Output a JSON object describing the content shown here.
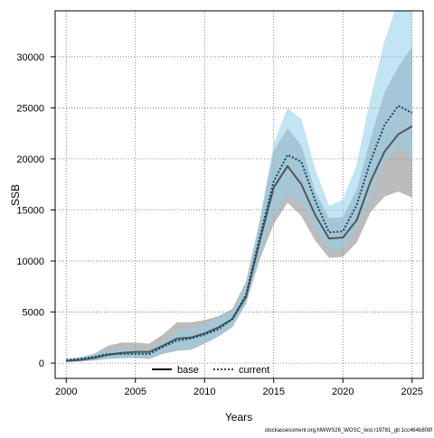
{
  "chart_data": {
    "type": "line",
    "xlabel": "Years",
    "ylabel": "SSB",
    "xlim": [
      1999.2,
      2025.8
    ],
    "ylim": [
      -1500,
      34500
    ],
    "x_ticks": [
      2000,
      2005,
      2010,
      2015,
      2020,
      2025
    ],
    "y_ticks": [
      0,
      5000,
      10000,
      15000,
      20000,
      25000,
      30000
    ],
    "grid": true,
    "legend_position": "bottom",
    "years": [
      2000,
      2001,
      2002,
      2003,
      2004,
      2005,
      2006,
      2007,
      2008,
      2009,
      2010,
      2011,
      2012,
      2013,
      2014,
      2015,
      2016,
      2017,
      2018,
      2019,
      2020,
      2021,
      2022,
      2023,
      2024,
      2025
    ],
    "series": [
      {
        "name": "base",
        "color": "#555555",
        "band_color": "#909090",
        "line_style": "solid",
        "values": [
          200,
          300,
          500,
          800,
          1000,
          1100,
          1100,
          1700,
          2400,
          2500,
          2900,
          3500,
          4300,
          6500,
          12000,
          17200,
          19300,
          17500,
          14500,
          12200,
          12300,
          14000,
          17800,
          20700,
          22400,
          23200
        ],
        "lower": [
          100,
          150,
          250,
          400,
          500,
          500,
          400,
          900,
          1200,
          1300,
          1900,
          2600,
          3500,
          5800,
          10200,
          13600,
          15700,
          14400,
          12000,
          10300,
          10400,
          11800,
          14800,
          16300,
          16800,
          16200
        ],
        "upper": [
          350,
          550,
          900,
          1700,
          2000,
          2000,
          1900,
          2800,
          4000,
          4000,
          4200,
          4600,
          5300,
          8000,
          14000,
          20800,
          23000,
          21300,
          16800,
          14200,
          14300,
          17000,
          22000,
          26500,
          29000,
          31000
        ]
      },
      {
        "name": "current",
        "color": "#0a4a6e",
        "band_color": "#8fcde9",
        "line_style": "dotted",
        "values": [
          300,
          400,
          600,
          900,
          900,
          900,
          900,
          1600,
          2200,
          2400,
          2800,
          3300,
          4300,
          6700,
          12400,
          17800,
          20400,
          19700,
          15900,
          12800,
          12900,
          15500,
          19800,
          23300,
          25200,
          24500
        ],
        "lower": [
          150,
          200,
          300,
          450,
          450,
          500,
          500,
          900,
          1300,
          1400,
          1900,
          2600,
          3600,
          6000,
          10700,
          14400,
          16500,
          15700,
          13100,
          11000,
          11100,
          13100,
          16500,
          19500,
          21400,
          20100
        ],
        "upper": [
          450,
          600,
          900,
          1300,
          1300,
          1300,
          1300,
          2200,
          3100,
          3400,
          3800,
          4400,
          5100,
          7700,
          14100,
          21500,
          25000,
          23900,
          19000,
          15400,
          16000,
          19500,
          26000,
          31500,
          35500,
          35500
        ]
      }
    ]
  },
  "legend": {
    "base_label": "base",
    "current_label": "current"
  },
  "footer": {
    "text": "stockassessment.org,NWWS26_WOSC_test,r19781_git:1cc464b808f"
  }
}
